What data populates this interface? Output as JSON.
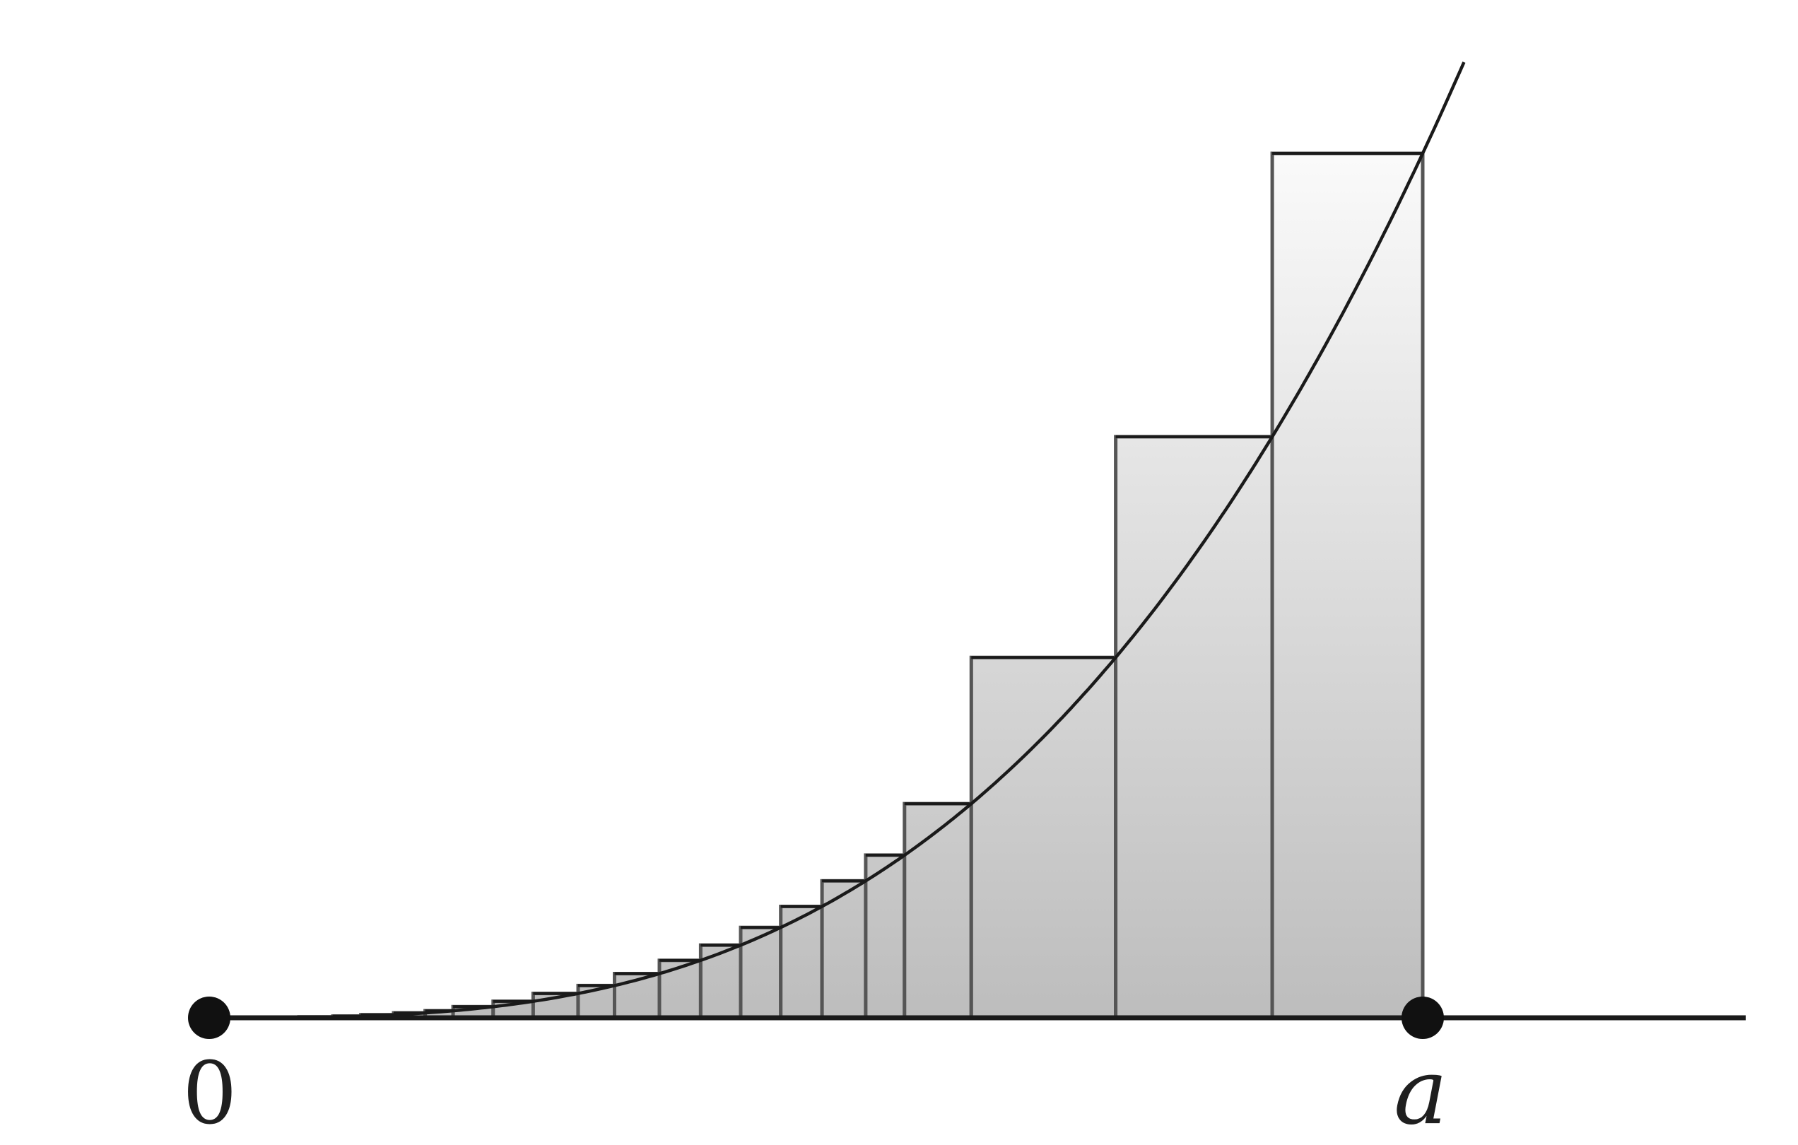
{
  "figure": {
    "type": "riemann_sum_diagram",
    "curve": "y = x^3",
    "interval": [
      0,
      1
    ],
    "rectangle_right_endpoints": [
      0.102,
      0.125,
      0.152,
      0.178,
      0.201,
      0.234,
      0.267,
      0.304,
      0.334,
      0.371,
      0.405,
      0.438,
      0.471,
      0.505,
      0.541,
      0.573,
      0.628,
      0.747,
      0.876,
      1.0
    ],
    "labels": {
      "origin": "0",
      "endpoint": "a"
    },
    "colors": {
      "line": "#1a1a1a",
      "rect_edge": "#555555",
      "fill_top": "#fbfbfb",
      "fill_bottom": "#bdbdbd"
    }
  }
}
